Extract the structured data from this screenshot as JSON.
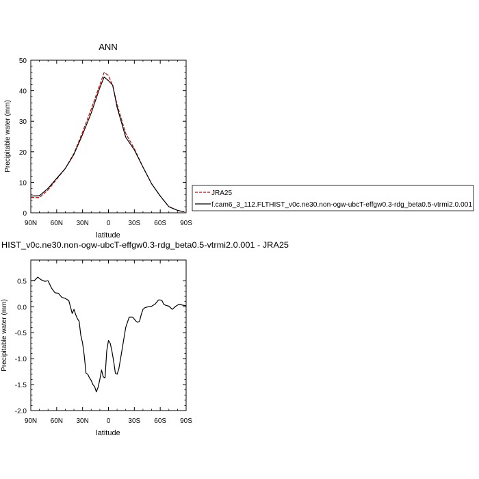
{
  "colors": {
    "jra": "#cc0000",
    "model": "#000000",
    "axis": "#000000"
  },
  "chart_data": [
    {
      "type": "line",
      "title": "ANN",
      "xlabel": "latitude",
      "ylabel": "Precipitable water (mm)",
      "xlim": [
        90,
        -90
      ],
      "ylim": [
        0,
        50
      ],
      "x_ticks": [
        90,
        60,
        30,
        0,
        -30,
        -60,
        -90
      ],
      "x_tick_labels": [
        "90N",
        "60N",
        "30N",
        "0",
        "30S",
        "60S",
        "90S"
      ],
      "y_ticks": [
        0,
        10,
        20,
        30,
        40,
        50
      ],
      "y_tick_labels": [
        "0",
        "10",
        "20",
        "30",
        "40",
        "50"
      ],
      "grid": false,
      "legend": [
        "JRA25",
        "f.cam6_3_112.FLTHIST_v0c.ne30.non-ogw-ubcT-effgw0.3-rdg_beta0.5-vtrmi2.0.001"
      ],
      "legend_position": "right",
      "series": [
        {
          "name": "JRA25",
          "style": "dashed",
          "x": [
            90,
            80,
            70,
            60,
            50,
            40,
            30,
            20,
            10,
            5,
            0,
            -5,
            -10,
            -20,
            -30,
            -40,
            -50,
            -60,
            -70,
            -80,
            -88
          ],
          "y": [
            5.0,
            5.0,
            7.5,
            11.0,
            14.5,
            19.5,
            26.5,
            34.0,
            42.0,
            46.0,
            45.0,
            41.5,
            35.5,
            26.0,
            21.0,
            15.0,
            9.5,
            5.5,
            2.0,
            0.8,
            0.3
          ]
        },
        {
          "name": "f.cam6_3_112.FLTHIST_v0c.ne30.non-ogw-ubcT-effgw0.3-rdg_beta0.5-vtrmi2.0.001",
          "style": "solid",
          "x": [
            90,
            80,
            70,
            60,
            50,
            40,
            30,
            20,
            10,
            5,
            0,
            -5,
            -10,
            -20,
            -30,
            -40,
            -50,
            -60,
            -70,
            -80,
            -88
          ],
          "y": [
            5.5,
            5.6,
            8.0,
            11.3,
            14.5,
            19.2,
            25.7,
            32.7,
            41.0,
            44.5,
            43.3,
            41.8,
            34.6,
            24.8,
            20.6,
            15.0,
            9.5,
            5.5,
            2.0,
            0.8,
            0.3
          ]
        }
      ]
    },
    {
      "type": "line",
      "title": "HIST_v0c.ne30.non-ogw-ubcT-effgw0.3-rdg_beta0.5-vtrmi2.0.001 - JRA25",
      "xlabel": "latitude",
      "ylabel": "Precipitable water (mm)",
      "xlim": [
        90,
        -90
      ],
      "ylim": [
        -2.0,
        0.9
      ],
      "x_ticks": [
        90,
        60,
        30,
        0,
        -30,
        -60,
        -90
      ],
      "x_tick_labels": [
        "90N",
        "60N",
        "30N",
        "0",
        "30S",
        "60S",
        "90S"
      ],
      "y_ticks": [
        -2.0,
        -1.5,
        -1.0,
        -0.5,
        0.0,
        0.5
      ],
      "y_tick_labels": [
        "-2.0",
        "-1.5",
        "-1.0",
        "-0.5",
        "0.0",
        "0.5"
      ],
      "grid": false,
      "series": [
        {
          "style": "solid",
          "x": [
            90,
            86,
            82,
            78,
            74,
            70,
            66,
            62,
            58,
            54,
            50,
            46,
            44,
            42,
            40,
            38,
            36,
            34,
            32,
            30,
            28,
            26,
            24,
            22,
            20,
            18,
            16,
            14,
            12,
            10,
            8,
            6,
            4,
            2,
            0,
            -2,
            -4,
            -6,
            -8,
            -10,
            -12,
            -14,
            -16,
            -18,
            -20,
            -24,
            -28,
            -32,
            -34,
            -36,
            -38,
            -40,
            -42,
            -44,
            -46,
            -50,
            -54,
            -58,
            -60,
            -62,
            -64,
            -66,
            -70,
            -74,
            -78,
            -82,
            -86,
            -90
          ],
          "y": [
            0.5,
            0.5,
            0.57,
            0.52,
            0.49,
            0.5,
            0.36,
            0.27,
            0.26,
            0.18,
            0.16,
            0.12,
            0.0,
            -0.13,
            -0.05,
            -0.15,
            -0.23,
            -0.28,
            -0.55,
            -0.7,
            -0.95,
            -1.28,
            -1.3,
            -1.37,
            -1.42,
            -1.5,
            -1.54,
            -1.64,
            -1.55,
            -1.4,
            -1.22,
            -1.35,
            -1.37,
            -0.85,
            -0.65,
            -0.7,
            -0.85,
            -1.05,
            -1.28,
            -1.3,
            -1.2,
            -1.0,
            -0.8,
            -0.6,
            -0.4,
            -0.2,
            -0.2,
            -0.28,
            -0.3,
            -0.28,
            -0.15,
            -0.05,
            -0.02,
            -0.01,
            0.0,
            0.01,
            0.05,
            0.13,
            0.13,
            0.12,
            0.05,
            0.03,
            0.01,
            -0.05,
            0.01,
            0.05,
            0.03,
            0.02
          ]
        }
      ]
    }
  ]
}
